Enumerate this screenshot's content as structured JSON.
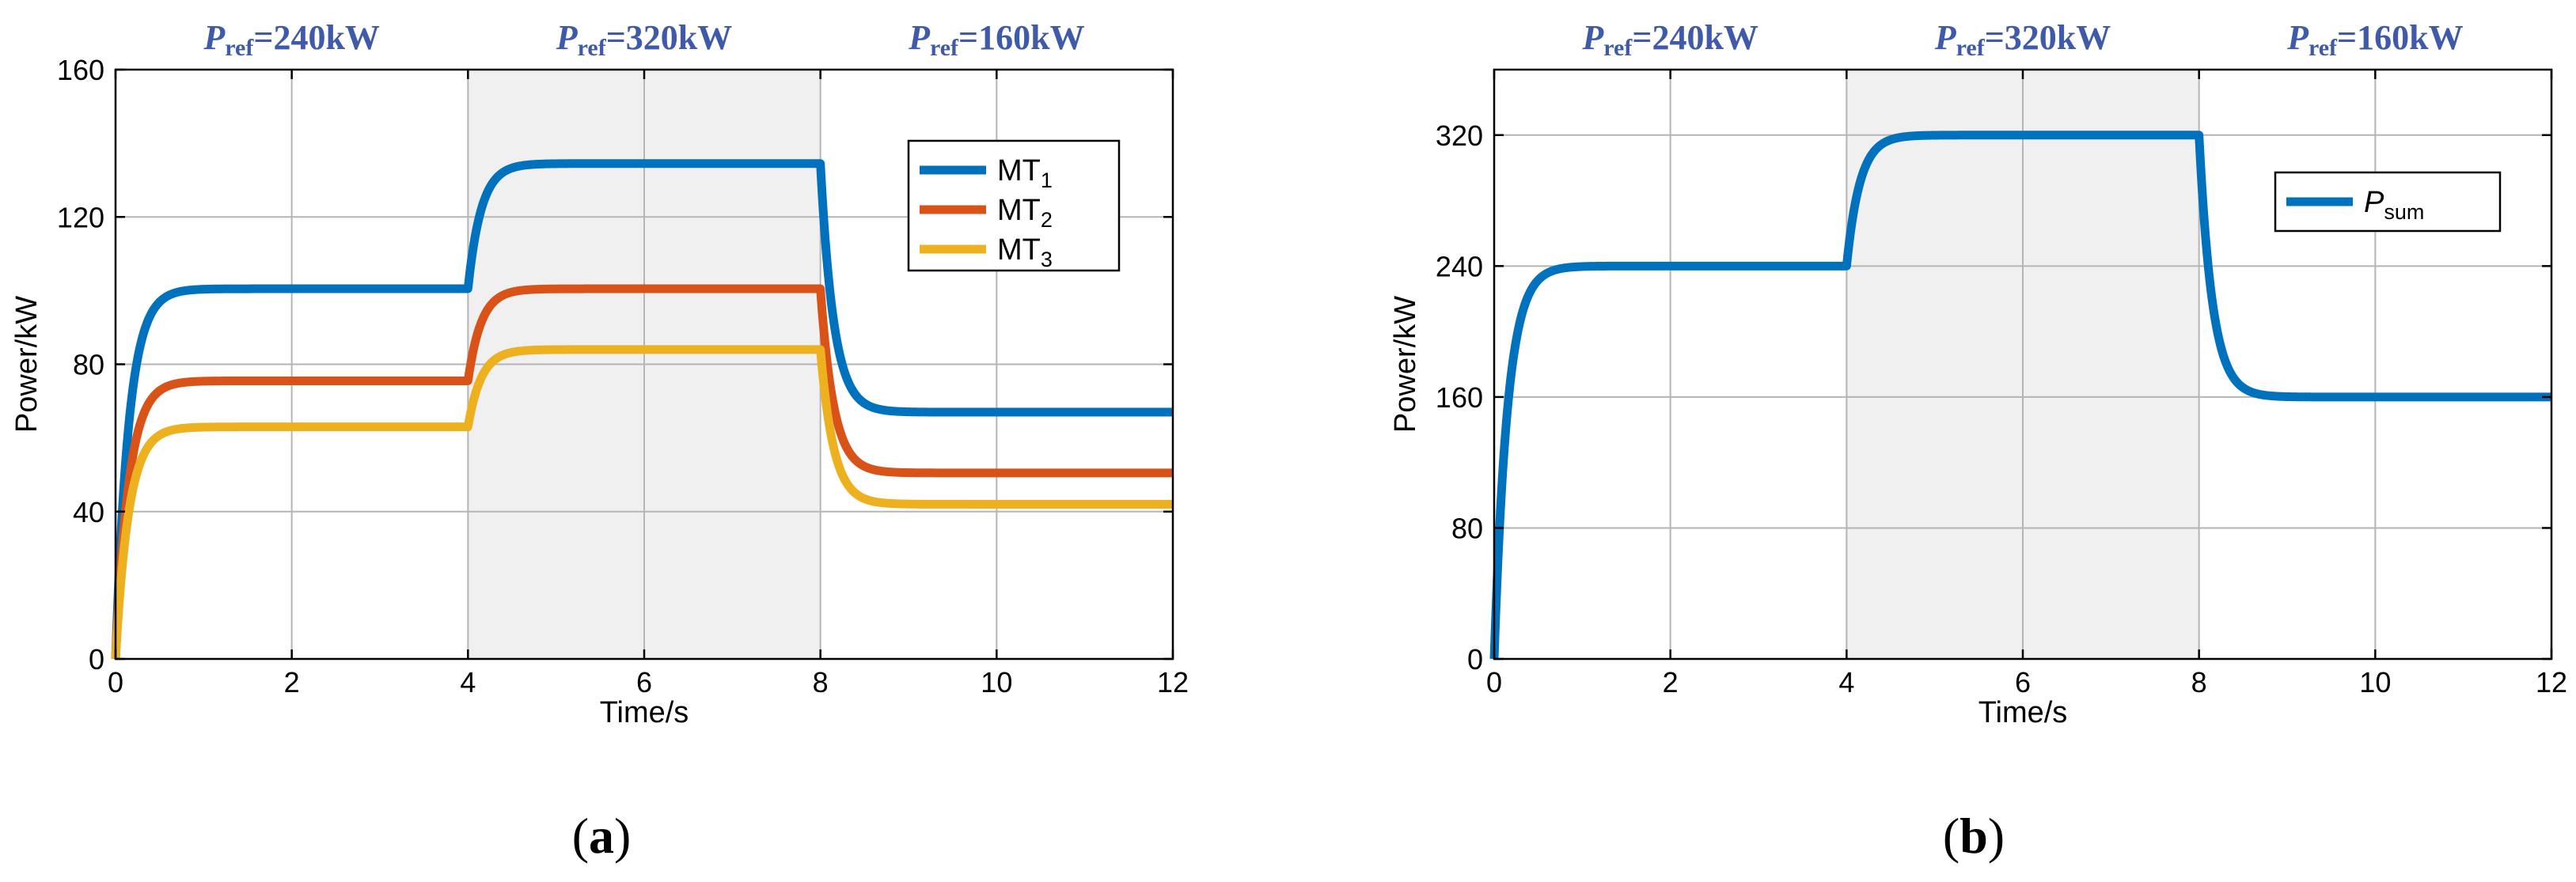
{
  "chart_data": [
    {
      "type": "line",
      "panel_label": "a",
      "xlabel": "Time/s",
      "ylabel": "Power/kW",
      "xlim": [
        0,
        12
      ],
      "ylim": [
        0,
        160
      ],
      "xticks": [
        "0",
        "2",
        "4",
        "6",
        "8",
        "10",
        "12"
      ],
      "yticks": [
        "0",
        "40",
        "80",
        "120",
        "160"
      ],
      "grid": true,
      "legend_position": "top-right",
      "shaded_regions": [
        {
          "x_start": 4,
          "x_end": 8,
          "color": "#f0f0f0"
        }
      ],
      "annotations": [
        {
          "main": "P",
          "sub": "ref",
          "value": "=240kW",
          "x": 2
        },
        {
          "main": "P",
          "sub": "ref",
          "value": "=320kW",
          "x": 6
        },
        {
          "main": "P",
          "sub": "ref",
          "value": "=160kW",
          "x": 10
        }
      ],
      "series": [
        {
          "name": "MT",
          "sub": "1",
          "color": "#0072bd",
          "levels": [
            100.5,
            134.5,
            67
          ]
        },
        {
          "name": "MT",
          "sub": "2",
          "color": "#d95319",
          "levels": [
            75.5,
            100.5,
            50.5
          ]
        },
        {
          "name": "MT",
          "sub": "3",
          "color": "#edb120",
          "levels": [
            63,
            84,
            42
          ]
        }
      ],
      "step_times": [
        0,
        4,
        8
      ],
      "time_constant_s": 0.15
    },
    {
      "type": "line",
      "panel_label": "b",
      "xlabel": "Time/s",
      "ylabel": "Power/kW",
      "xlim": [
        0,
        12
      ],
      "ylim": [
        0,
        360
      ],
      "xticks": [
        "0",
        "2",
        "4",
        "6",
        "8",
        "10",
        "12"
      ],
      "yticks": [
        "0",
        "80",
        "160",
        "240",
        "320"
      ],
      "grid": true,
      "legend_position": "top-right",
      "shaded_regions": [
        {
          "x_start": 4,
          "x_end": 8,
          "color": "#f0f0f0"
        }
      ],
      "annotations": [
        {
          "main": "P",
          "sub": "ref",
          "value": "=240kW",
          "x": 2
        },
        {
          "main": "P",
          "sub": "ref",
          "value": "=320kW",
          "x": 6
        },
        {
          "main": "P",
          "sub": "ref",
          "value": "=160kW",
          "x": 10
        }
      ],
      "series": [
        {
          "name": "P",
          "sub": "sum",
          "color": "#0072bd",
          "levels": [
            240,
            320,
            160
          ]
        }
      ],
      "step_times": [
        0,
        4,
        8
      ],
      "time_constant_s": 0.15
    }
  ],
  "captions": {
    "a": {
      "open": "(",
      "letter": "a",
      "close": ")"
    },
    "b": {
      "open": "(",
      "letter": "b",
      "close": ")"
    }
  }
}
